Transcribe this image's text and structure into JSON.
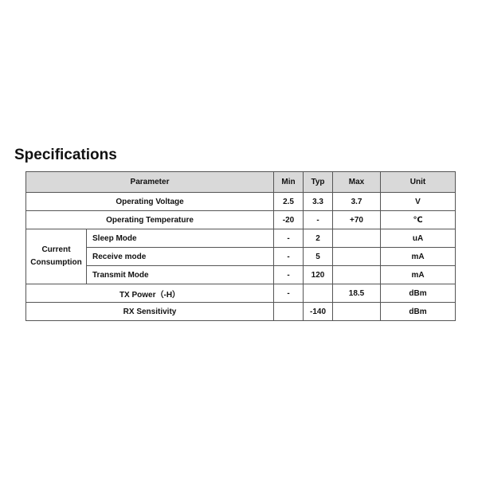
{
  "title": "Specifications",
  "headers": {
    "parameter": "Parameter",
    "min": "Min",
    "typ": "Typ",
    "max": "Max",
    "unit": "Unit"
  },
  "rows": [
    {
      "parameter": "Operating Voltage",
      "min": "2.5",
      "typ": "3.3",
      "max": "3.7",
      "unit": "V"
    },
    {
      "parameter": "Operating Temperature",
      "min": "-20",
      "typ": "-",
      "max": "+70",
      "unit": "℃"
    },
    {
      "group": "Current Consumption",
      "parameter": "Sleep Mode",
      "min": "-",
      "typ": "2",
      "max": "",
      "unit": "uA"
    },
    {
      "group": "Current Consumption",
      "parameter": "Receive mode",
      "min": "-",
      "typ": "5",
      "max": "",
      "unit": "mA"
    },
    {
      "group": "Current Consumption",
      "parameter": "Transmit Mode",
      "min": "-",
      "typ": "120",
      "max": "",
      "unit": "mA"
    },
    {
      "parameter": "TX Power（-H）",
      "min": "-",
      "typ": "",
      "max": "18.5",
      "unit": "dBm"
    },
    {
      "parameter": "RX Sensitivity",
      "min": "",
      "typ": "-140",
      "max": "",
      "unit": "dBm"
    }
  ]
}
